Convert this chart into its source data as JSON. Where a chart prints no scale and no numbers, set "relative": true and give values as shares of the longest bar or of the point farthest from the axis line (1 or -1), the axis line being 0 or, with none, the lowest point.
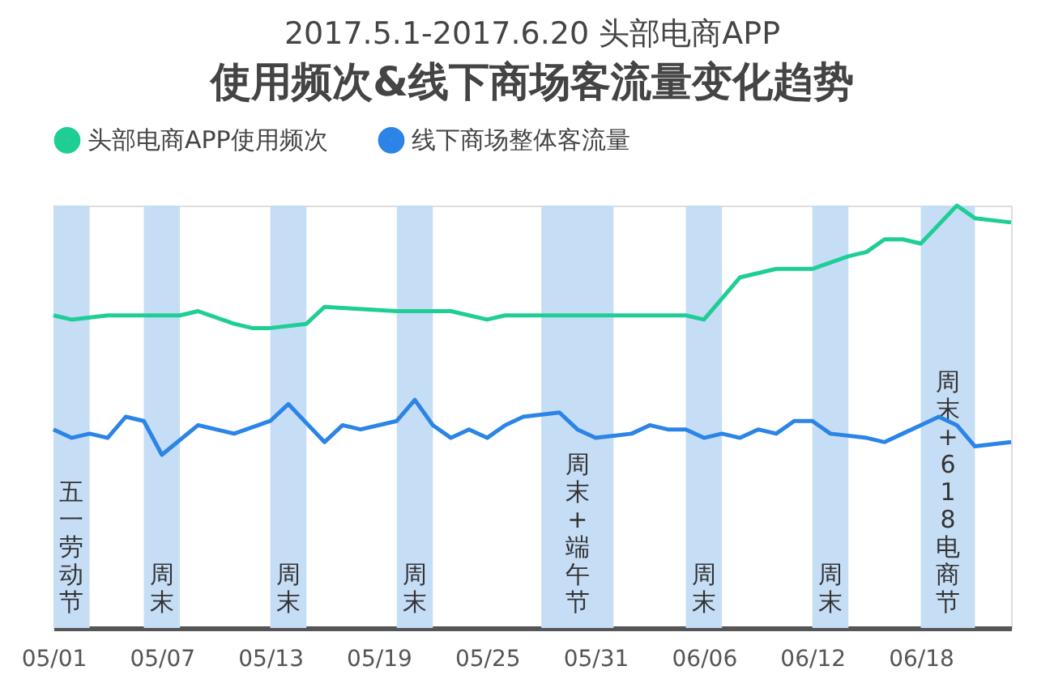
{
  "chart_data": {
    "type": "line",
    "title": "2017.5.1-2017.6.20 头部电商APP",
    "subtitle": "使用频次&线下商场客流量变化趋势",
    "relative": true,
    "legend": "top",
    "grid": false,
    "xlim": [
      "2017-05-01",
      "2017-06-23"
    ],
    "xticks": [
      {
        "value": "2017-05-01",
        "label": "05/01"
      },
      {
        "value": "2017-05-07",
        "label": "05/07"
      },
      {
        "value": "2017-05-13",
        "label": "05/13"
      },
      {
        "value": "2017-05-19",
        "label": "05/19"
      },
      {
        "value": "2017-05-25",
        "label": "05/25"
      },
      {
        "value": "2017-05-31",
        "label": "05/31"
      },
      {
        "value": "2017-06-06",
        "label": "06/06"
      },
      {
        "value": "2017-06-12",
        "label": "06/12"
      },
      {
        "value": "2017-06-18",
        "label": "06/18"
      }
    ],
    "series": [
      {
        "name": "头部电商APP使用频次",
        "color": "#1fce95",
        "x": [
          "2017-05-01",
          "2017-05-02",
          "2017-05-04",
          "2017-05-08",
          "2017-05-09",
          "2017-05-11",
          "2017-05-12",
          "2017-05-13",
          "2017-05-15",
          "2017-05-16",
          "2017-05-20",
          "2017-05-21",
          "2017-05-23",
          "2017-05-25",
          "2017-05-26",
          "2017-05-27",
          "2017-05-28",
          "2017-06-01",
          "2017-06-05",
          "2017-06-06",
          "2017-06-07",
          "2017-06-08",
          "2017-06-10",
          "2017-06-12",
          "2017-06-14",
          "2017-06-15",
          "2017-06-16",
          "2017-06-17",
          "2017-06-18",
          "2017-06-20",
          "2017-06-21",
          "2017-06-23"
        ],
        "values": [
          0.74,
          0.73,
          0.74,
          0.74,
          0.75,
          0.72,
          0.71,
          0.71,
          0.72,
          0.76,
          0.75,
          0.75,
          0.75,
          0.73,
          0.74,
          0.74,
          0.74,
          0.74,
          0.74,
          0.73,
          0.78,
          0.83,
          0.85,
          0.85,
          0.88,
          0.89,
          0.92,
          0.92,
          0.91,
          1.0,
          0.97,
          0.96
        ]
      },
      {
        "name": "线下商场整体客流量",
        "color": "#2b84e6",
        "x": [
          "2017-05-01",
          "2017-05-02",
          "2017-05-03",
          "2017-05-04",
          "2017-05-05",
          "2017-05-06",
          "2017-05-07",
          "2017-05-09",
          "2017-05-10",
          "2017-05-11",
          "2017-05-13",
          "2017-05-14",
          "2017-05-16",
          "2017-05-17",
          "2017-05-18",
          "2017-05-20",
          "2017-05-21",
          "2017-05-22",
          "2017-05-23",
          "2017-05-24",
          "2017-05-25",
          "2017-05-26",
          "2017-05-27",
          "2017-05-29",
          "2017-05-30",
          "2017-05-31",
          "2017-06-02",
          "2017-06-03",
          "2017-06-04",
          "2017-06-05",
          "2017-06-06",
          "2017-06-07",
          "2017-06-08",
          "2017-06-09",
          "2017-06-10",
          "2017-06-11",
          "2017-06-12",
          "2017-06-13",
          "2017-06-15",
          "2017-06-16",
          "2017-06-17",
          "2017-06-18",
          "2017-06-19",
          "2017-06-20",
          "2017-06-21",
          "2017-06-23"
        ],
        "values": [
          0.47,
          0.45,
          0.46,
          0.45,
          0.5,
          0.49,
          0.41,
          0.48,
          0.47,
          0.46,
          0.49,
          0.53,
          0.44,
          0.48,
          0.47,
          0.49,
          0.54,
          0.48,
          0.45,
          0.47,
          0.45,
          0.48,
          0.5,
          0.51,
          0.47,
          0.45,
          0.46,
          0.48,
          0.47,
          0.47,
          0.45,
          0.46,
          0.45,
          0.47,
          0.46,
          0.49,
          0.49,
          0.46,
          0.45,
          0.44,
          0.46,
          0.48,
          0.5,
          0.48,
          0.43,
          0.44
        ]
      }
    ],
    "bands": [
      {
        "axis": "x",
        "from": "2017-05-01",
        "to": "2017-05-03",
        "label": "五一劳动节",
        "color": "#c6ddf6"
      },
      {
        "axis": "x",
        "from": "2017-05-06",
        "to": "2017-05-08",
        "label": "周末",
        "color": "#c6ddf6"
      },
      {
        "axis": "x",
        "from": "2017-05-13",
        "to": "2017-05-15",
        "label": "周末",
        "color": "#c6ddf6"
      },
      {
        "axis": "x",
        "from": "2017-05-20",
        "to": "2017-05-22",
        "label": "周末",
        "color": "#c6ddf6"
      },
      {
        "axis": "x",
        "from": "2017-05-28",
        "to": "2017-06-01",
        "label": "周末+端午节",
        "color": "#c6ddf6"
      },
      {
        "axis": "x",
        "from": "2017-06-05",
        "to": "2017-06-07",
        "label": "周末",
        "color": "#c6ddf6"
      },
      {
        "axis": "x",
        "from": "2017-06-12",
        "to": "2017-06-14",
        "label": "周末",
        "color": "#c6ddf6"
      },
      {
        "axis": "x",
        "from": "2017-06-18",
        "to": "2017-06-21",
        "label": "周末+618电商节",
        "color": "#c6ddf6"
      }
    ]
  }
}
